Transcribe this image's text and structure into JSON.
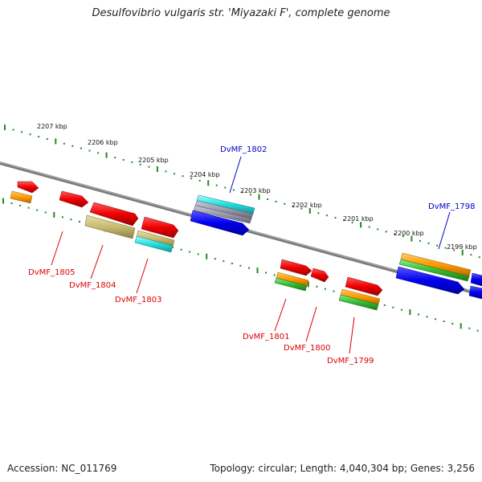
{
  "title": "Desulfovibrio vulgaris str. 'Miyazaki F', complete genome",
  "footer": {
    "accession": "Accession: NC_011769",
    "summary": "Topology: circular; Length: 4,040,304 bp; Genes: 3,256"
  },
  "kbp_labels": [
    "2207 kbp",
    "2206 kbp",
    "2205 kbp",
    "2204 kbp",
    "2203 kbp",
    "2202 kbp",
    "2201 kbp",
    "2200 kbp",
    "2199 kbp"
  ],
  "genes": [
    {
      "name": "DvMF_1805",
      "color": "#dd0000"
    },
    {
      "name": "DvMF_1804",
      "color": "#dd0000"
    },
    {
      "name": "DvMF_1803",
      "color": "#dd0000"
    },
    {
      "name": "DvMF_1802",
      "color": "#0000cc"
    },
    {
      "name": "DvMF_1801",
      "color": "#dd0000"
    },
    {
      "name": "DvMF_1800",
      "color": "#dd0000"
    },
    {
      "name": "DvMF_1799",
      "color": "#dd0000"
    },
    {
      "name": "DvMF_1798",
      "color": "#0000cc"
    }
  ],
  "colors": {
    "forward_strand": "#0000ee",
    "reverse_strand": "#ee0000",
    "backbone": "#808080",
    "ticks": "#228822"
  }
}
